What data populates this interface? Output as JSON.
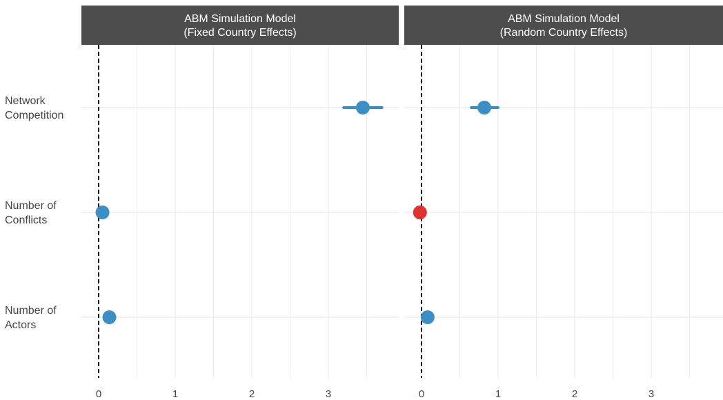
{
  "chart_data": {
    "type": "scatter",
    "description_type": "faceted coefficient (dot-and-whisker) plot",
    "categories": [
      "Network\nCompetition",
      "Number of\nConflicts",
      "Number of\nActors"
    ],
    "x_ticks": [
      0,
      1,
      2,
      3
    ],
    "xlim": [
      -0.2,
      3.85
    ],
    "reference_line": {
      "x": 0,
      "style": "dashed",
      "color": "#111111"
    },
    "grid": true,
    "legend": "none",
    "colors": {
      "positive": "#3b8fc4",
      "negative": "#e03030",
      "strip": "#4d4d4d",
      "grid": "#ebebeb"
    },
    "panels": [
      {
        "title": "ABM Simulation Model\n(Fixed Country Effects)",
        "points": [
          {
            "category": "Network\nCompetition",
            "estimate": 3.45,
            "ci": [
              3.2,
              3.7
            ],
            "color": "#3b8fc4"
          },
          {
            "category": "Number of\nConflicts",
            "estimate": 0.05,
            "ci": [
              0.05,
              0.05
            ],
            "color": "#3b8fc4"
          },
          {
            "category": "Number of\nActors",
            "estimate": 0.14,
            "ci": [
              0.14,
              0.14
            ],
            "color": "#3b8fc4"
          }
        ]
      },
      {
        "title": "ABM Simulation Model\n(Random Country Effects)",
        "points": [
          {
            "category": "Network\nCompetition",
            "estimate": 0.82,
            "ci": [
              0.65,
              1.0
            ],
            "color": "#3b8fc4"
          },
          {
            "category": "Number of\nConflicts",
            "estimate": -0.02,
            "ci": [
              -0.02,
              -0.02
            ],
            "color": "#e03030"
          },
          {
            "category": "Number of\nActors",
            "estimate": 0.08,
            "ci": [
              0.08,
              0.08
            ],
            "color": "#3b8fc4"
          }
        ]
      }
    ]
  }
}
